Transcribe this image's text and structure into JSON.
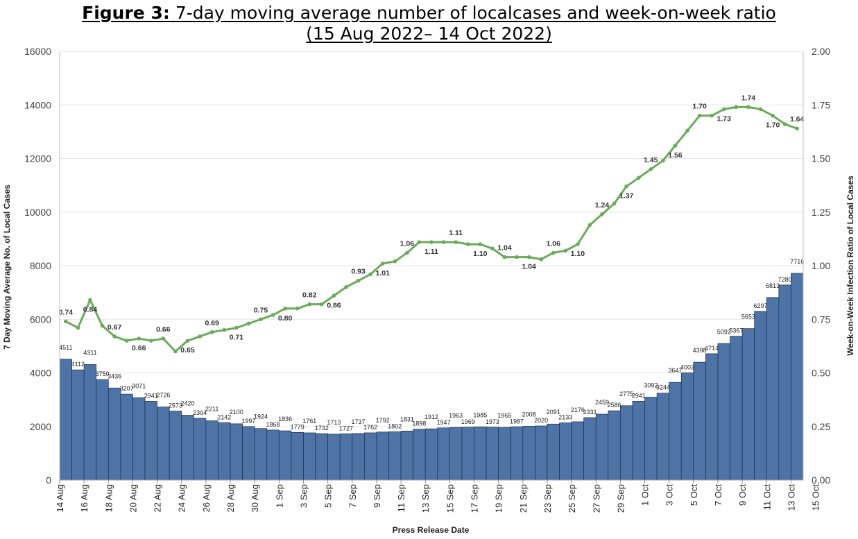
{
  "title": {
    "prefix": "Figure 3:",
    "main": "7-day moving average number of localcases and week-on-week ratio",
    "range": "(15 Aug 2022– 14 Oct 2022)"
  },
  "chart_data": {
    "type": "bar",
    "xlabel": "Press Release Date",
    "ylabel": "7 Day Moving Average No. of Local Cases",
    "y2label": "Week-on-Week Infection Ratio of Local Cases",
    "ylim": [
      0,
      16000
    ],
    "y2lim": [
      0,
      2
    ],
    "yticks": [
      "0",
      "2000",
      "4000",
      "6000",
      "8000",
      "10000",
      "12000",
      "14000",
      "16000"
    ],
    "y2ticks": [
      "0.00",
      "0.25",
      "0.50",
      "0.75",
      "1.00",
      "1.25",
      "1.50",
      "1.75",
      "2.00"
    ],
    "xticks": [
      "14 Aug",
      "16 Aug",
      "18 Aug",
      "20 Aug",
      "22 Aug",
      "24 Aug",
      "26 Aug",
      "28 Aug",
      "30 Aug",
      "1 Sep",
      "3 Sep",
      "5 Sep",
      "7 Sep",
      "9 Sep",
      "11 Sep",
      "13 Sep",
      "15 Sep",
      "17 Sep",
      "19 Sep",
      "21 Sep",
      "23 Sep",
      "25 Sep",
      "27 Sep",
      "29 Sep",
      "1 Oct",
      "3 Oct",
      "5 Oct",
      "7 Oct",
      "9 Oct",
      "11 Oct",
      "13 Oct",
      "15 Oct"
    ],
    "grid": true,
    "series": [
      {
        "type": "bar",
        "axis": "left",
        "color": "#4e73a6",
        "values": [
          4511,
          4112,
          4311,
          3750,
          3436,
          3207,
          3071,
          2941,
          2726,
          2573,
          2420,
          2304,
          2211,
          2142,
          2100,
          1997,
          1924,
          1868,
          1836,
          1779,
          1761,
          1732,
          1713,
          1727,
          1737,
          1762,
          1792,
          1802,
          1831,
          1898,
          1912,
          1947,
          1963,
          1969,
          1985,
          1973,
          1965,
          1987,
          2008,
          2020,
          2091,
          2133,
          2176,
          2331,
          2459,
          2586,
          2775,
          2941,
          3092,
          3244,
          3647,
          4003,
          4398,
          4714,
          5092,
          5367,
          5653,
          6297,
          6813,
          7280,
          7716
        ]
      },
      {
        "type": "line",
        "axis": "right",
        "color": "#6aaa5a",
        "values": [
          0.74,
          0.71,
          0.84,
          0.72,
          0.67,
          0.65,
          0.66,
          0.65,
          0.66,
          0.6,
          0.65,
          0.67,
          0.69,
          0.7,
          0.71,
          0.73,
          0.75,
          0.77,
          0.8,
          0.8,
          0.82,
          0.82,
          0.86,
          0.9,
          0.93,
          0.96,
          1.01,
          1.02,
          1.06,
          1.11,
          1.11,
          1.11,
          1.11,
          1.1,
          1.1,
          1.08,
          1.04,
          1.04,
          1.04,
          1.03,
          1.06,
          1.07,
          1.1,
          1.19,
          1.24,
          1.29,
          1.37,
          1.41,
          1.45,
          1.49,
          1.56,
          1.63,
          1.7,
          1.7,
          1.73,
          1.74,
          1.74,
          1.73,
          1.7,
          1.66,
          1.64
        ]
      }
    ]
  }
}
